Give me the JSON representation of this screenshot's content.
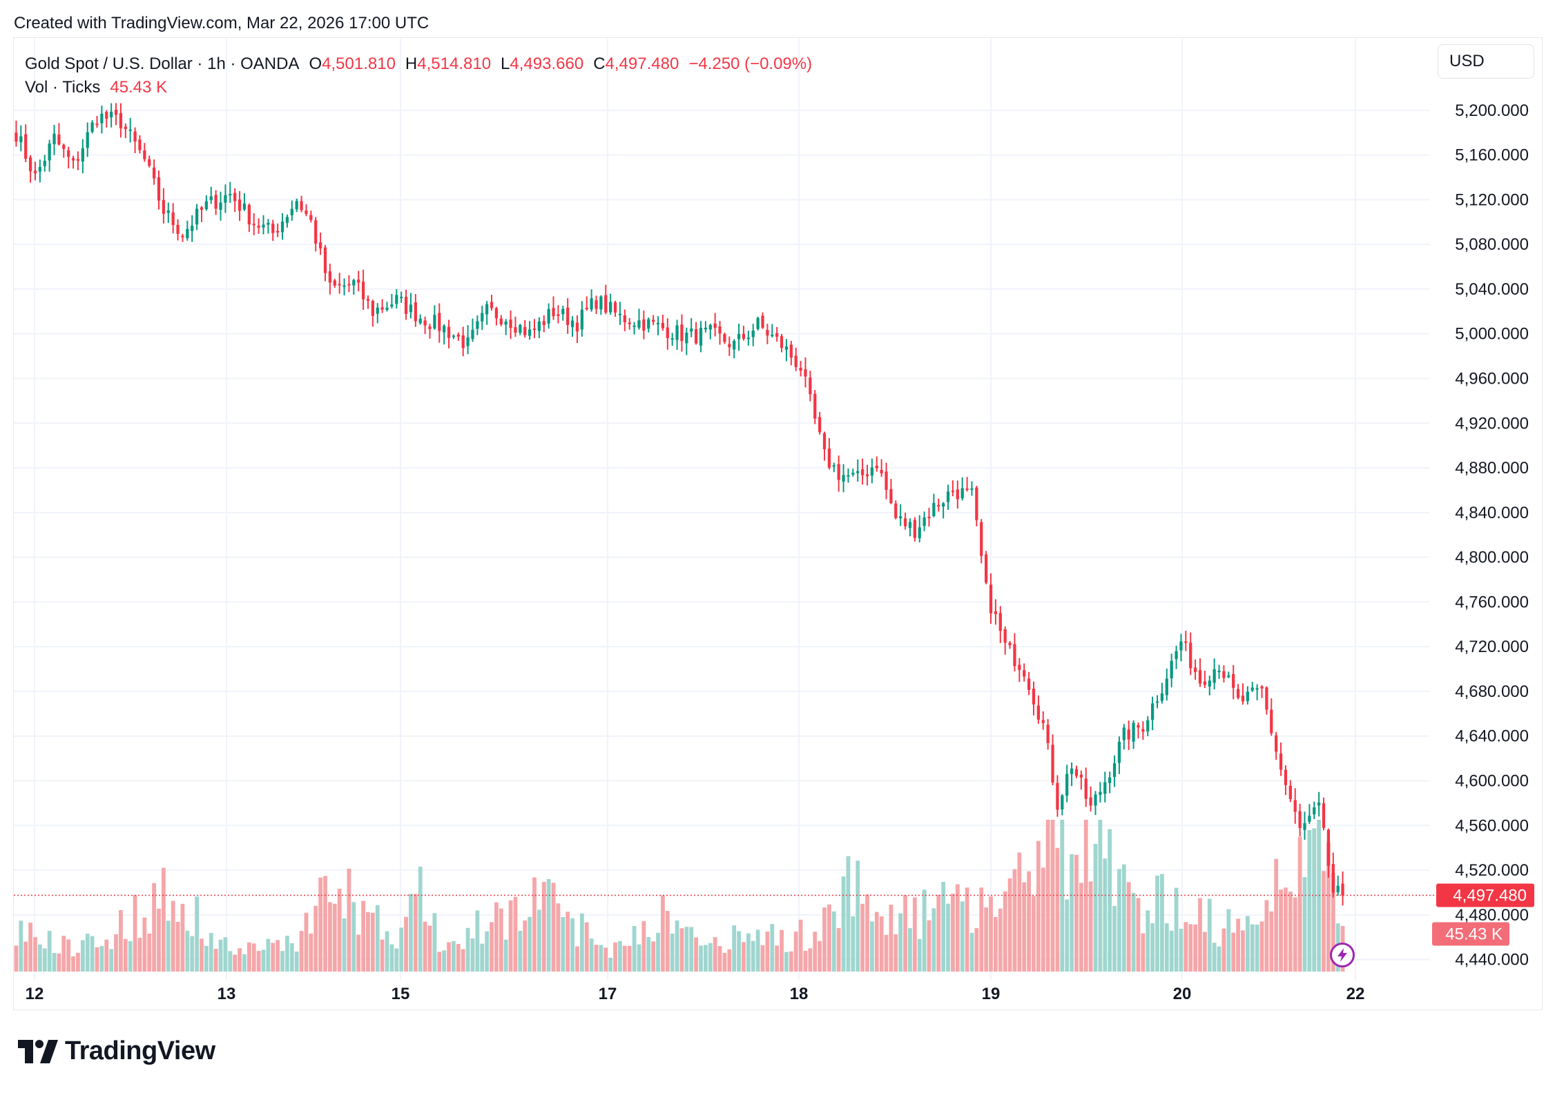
{
  "header": {
    "created_text": "Created with TradingView.com, Mar 22, 2026 17:00 UTC"
  },
  "legend": {
    "symbol": "Gold Spot / U.S. Dollar · 1h · OANDA",
    "o_label": "O",
    "o_value": "4,501.810",
    "h_label": "H",
    "h_value": "4,514.810",
    "l_label": "L",
    "l_value": "4,493.660",
    "c_label": "C",
    "c_value": "4,497.480",
    "change": "−4.250 (−0.09%)",
    "vol_label": "Vol · Ticks",
    "vol_value": "45.43 K"
  },
  "currency_button": "USD",
  "brand": {
    "name": "TradingView"
  },
  "colors": {
    "up": "#089981",
    "down": "#f23645",
    "vol_up": "#9fd6cf",
    "vol_down": "#f5a6a9",
    "grid": "#f0f3fa"
  },
  "chart_data": {
    "type": "candlestick",
    "interval": "1h",
    "symbol": "XAUUSD",
    "x_tick_labels": [
      "12",
      "13",
      "15",
      "17",
      "18",
      "19",
      "20",
      "22"
    ],
    "y_tick_labels": [
      "5,200.000",
      "5,160.000",
      "5,120.000",
      "5,080.000",
      "5,040.000",
      "5,000.000",
      "4,960.000",
      "4,920.000",
      "4,880.000",
      "4,840.000",
      "4,800.000",
      "4,760.000",
      "4,720.000",
      "4,680.000",
      "4,640.000",
      "4,600.000",
      "4,560.000",
      "4,520.000",
      "4,480.000",
      "4,440.000"
    ],
    "y_range": [
      4420,
      5232
    ],
    "last_price": 4497.48,
    "last_price_label": "4,497.480",
    "last_volume_label": "45.43 K",
    "volume_scale_max": 100,
    "close_path": [
      [
        0,
        5180
      ],
      [
        4,
        5140
      ],
      [
        8,
        5175
      ],
      [
        12,
        5150
      ],
      [
        17,
        5195
      ],
      [
        22,
        5190
      ],
      [
        27,
        5155
      ],
      [
        31,
        5110
      ],
      [
        35,
        5090
      ],
      [
        40,
        5115
      ],
      [
        45,
        5125
      ],
      [
        50,
        5100
      ],
      [
        54,
        5090
      ],
      [
        59,
        5120
      ],
      [
        62,
        5100
      ],
      [
        66,
        5040
      ],
      [
        71,
        5045
      ],
      [
        75,
        5020
      ],
      [
        80,
        5030
      ],
      [
        85,
        5015
      ],
      [
        90,
        5005
      ],
      [
        95,
        4990
      ],
      [
        99,
        5020
      ],
      [
        103,
        5015
      ],
      [
        108,
        5000
      ],
      [
        113,
        5020
      ],
      [
        118,
        5010
      ],
      [
        122,
        5030
      ],
      [
        127,
        5015
      ],
      [
        132,
        5010
      ],
      [
        136,
        5005
      ],
      [
        141,
        4998
      ],
      [
        146,
        5000
      ],
      [
        151,
        4990
      ],
      [
        156,
        5008
      ],
      [
        161,
        4990
      ],
      [
        165,
        4970
      ],
      [
        170,
        4890
      ],
      [
        173,
        4875
      ],
      [
        177,
        4870
      ],
      [
        181,
        4885
      ],
      [
        185,
        4835
      ],
      [
        189,
        4825
      ],
      [
        193,
        4845
      ],
      [
        197,
        4860
      ],
      [
        201,
        4855
      ],
      [
        204,
        4770
      ],
      [
        208,
        4720
      ],
      [
        212,
        4700
      ],
      [
        216,
        4650
      ],
      [
        219,
        4580
      ],
      [
        222,
        4615
      ],
      [
        226,
        4575
      ],
      [
        229,
        4600
      ],
      [
        233,
        4640
      ],
      [
        237,
        4650
      ],
      [
        241,
        4685
      ],
      [
        245,
        4725
      ],
      [
        249,
        4690
      ],
      [
        253,
        4705
      ],
      [
        257,
        4670
      ],
      [
        262,
        4680
      ],
      [
        266,
        4610
      ],
      [
        270,
        4555
      ],
      [
        274,
        4575
      ],
      [
        277,
        4500
      ],
      [
        279,
        4497.48
      ]
    ],
    "volume_path": [
      [
        0,
        30
      ],
      [
        10,
        18
      ],
      [
        20,
        25
      ],
      [
        27,
        45
      ],
      [
        35,
        55
      ],
      [
        41,
        20
      ],
      [
        50,
        15
      ],
      [
        60,
        25
      ],
      [
        66,
        60
      ],
      [
        72,
        45
      ],
      [
        80,
        20
      ],
      [
        85,
        55
      ],
      [
        90,
        15
      ],
      [
        100,
        35
      ],
      [
        108,
        50
      ],
      [
        115,
        40
      ],
      [
        125,
        15
      ],
      [
        135,
        40
      ],
      [
        145,
        18
      ],
      [
        155,
        25
      ],
      [
        168,
        25
      ],
      [
        175,
        65
      ],
      [
        185,
        35
      ],
      [
        195,
        45
      ],
      [
        205,
        50
      ],
      [
        212,
        75
      ],
      [
        217,
        90
      ],
      [
        225,
        85
      ],
      [
        235,
        50
      ],
      [
        245,
        45
      ],
      [
        255,
        30
      ],
      [
        262,
        30
      ],
      [
        266,
        70
      ],
      [
        270,
        85
      ],
      [
        275,
        75
      ],
      [
        279,
        45
      ]
    ]
  }
}
